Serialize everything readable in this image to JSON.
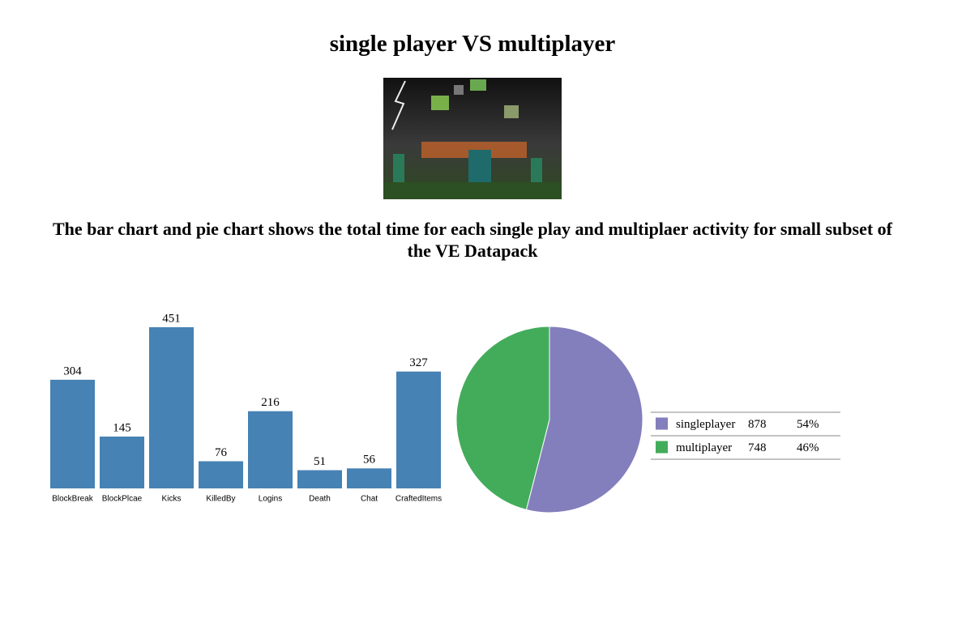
{
  "header": {
    "title": "single player VS multiplayer",
    "subtitle": "The bar chart and pie chart shows the total time for each single play and multiplaer activity for small subset of the VE Datapack"
  },
  "chart_data": [
    {
      "type": "bar",
      "categories": [
        "BlockBreak",
        "BlockPlcae",
        "Kicks",
        "KilledBy",
        "Logins",
        "Death",
        "Chat",
        "CraftedItems"
      ],
      "values": [
        304,
        145,
        451,
        76,
        216,
        51,
        56,
        327
      ],
      "color": "#4682b4"
    },
    {
      "type": "pie",
      "categories": [
        "singleplayer",
        "multiplayer"
      ],
      "values": [
        878,
        748
      ],
      "percent_labels": [
        "54%",
        "46%"
      ],
      "colors": [
        "#837fbc",
        "#43ac5b"
      ]
    }
  ]
}
